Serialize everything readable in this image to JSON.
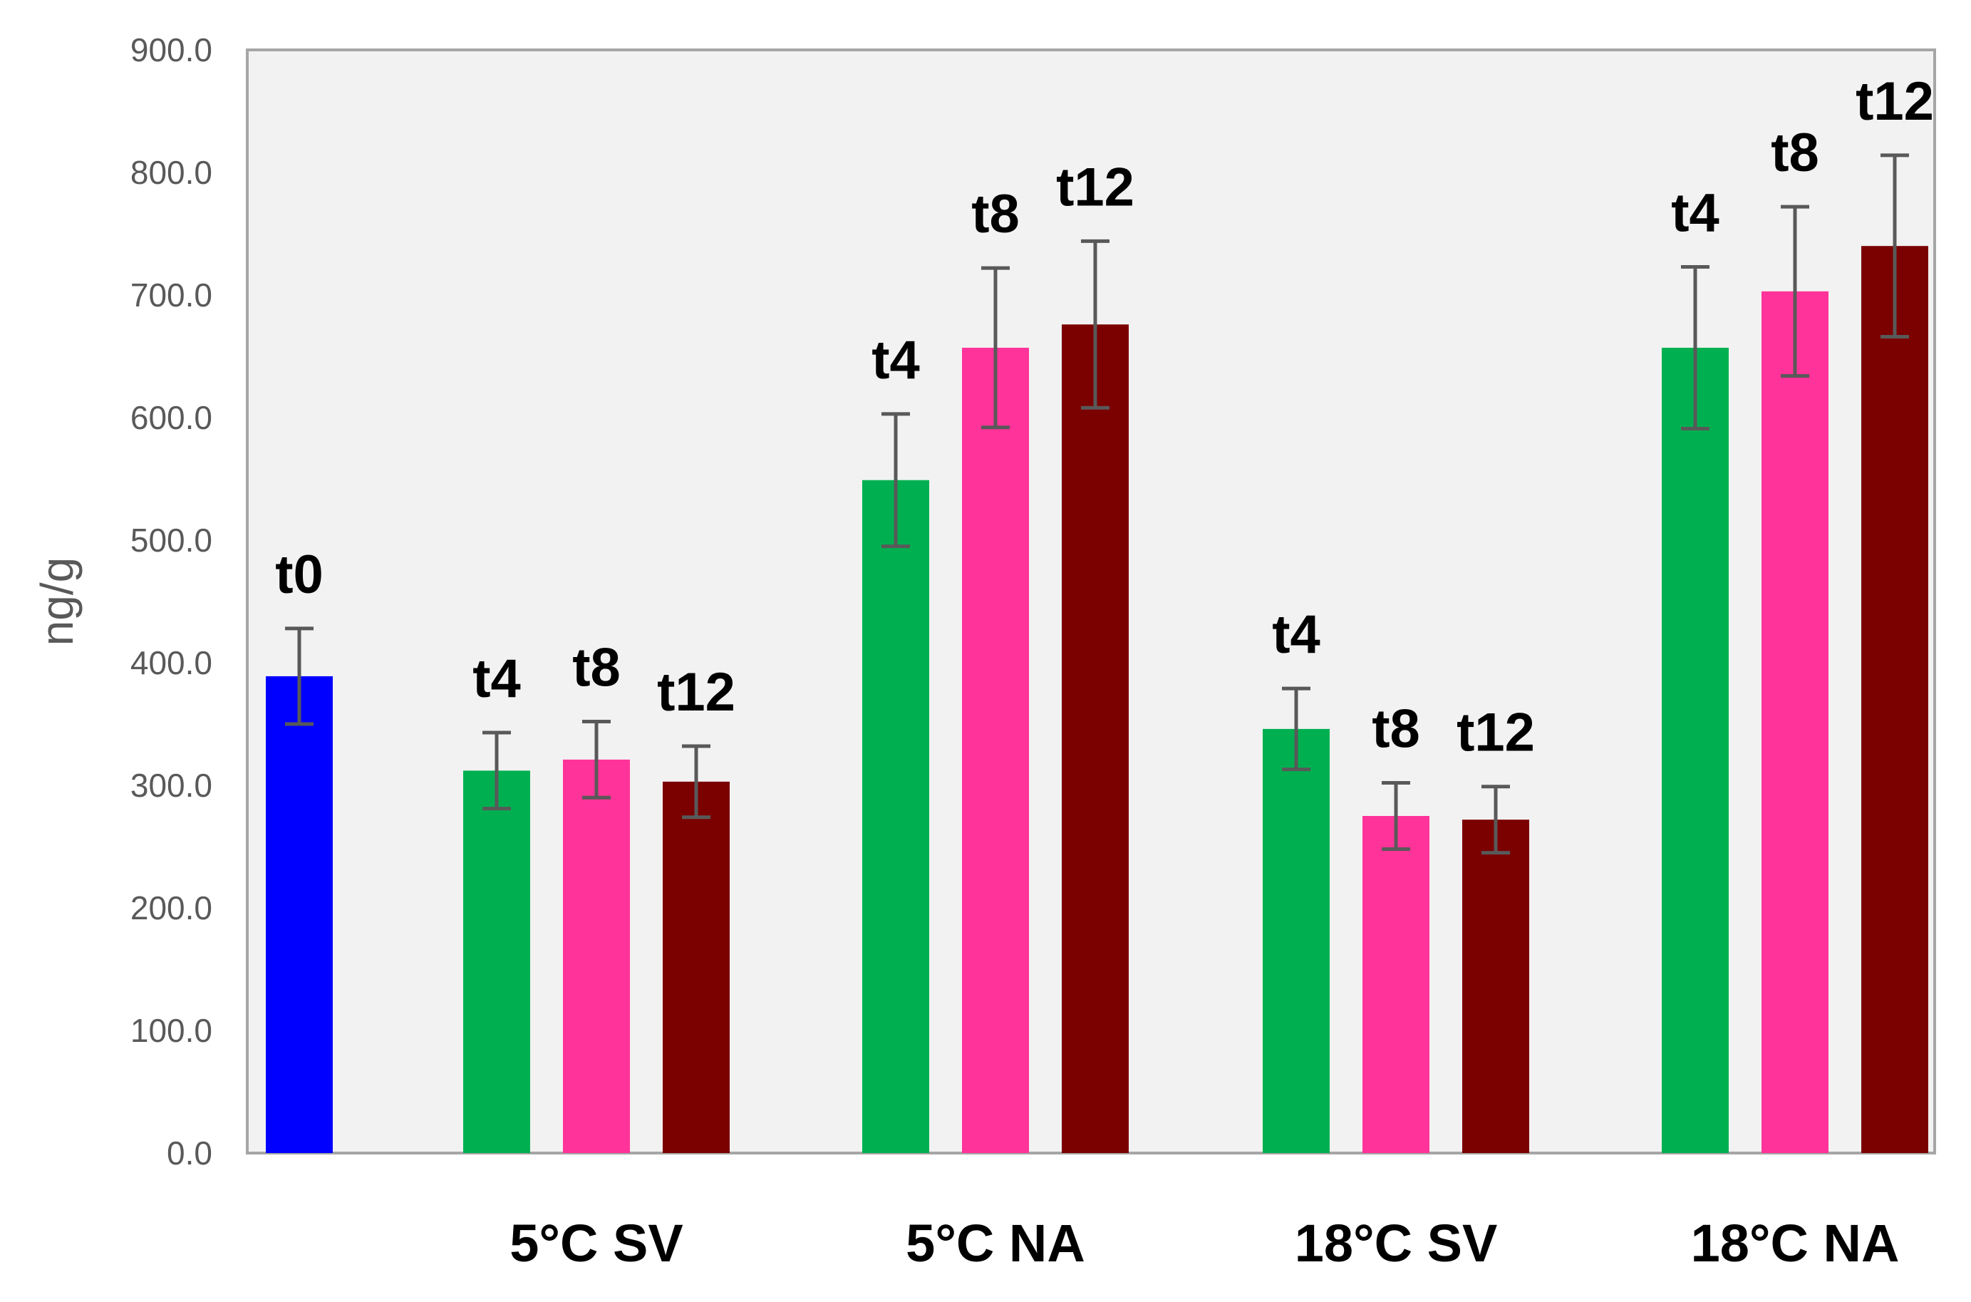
{
  "chart_data": {
    "type": "bar",
    "title": "",
    "xlabel": "",
    "ylabel": "ng/g",
    "ylim": [
      0,
      900
    ],
    "yticks": [
      "0.0",
      "100.0",
      "200.0",
      "300.0",
      "400.0",
      "500.0",
      "600.0",
      "700.0",
      "800.0",
      "900.0"
    ],
    "grid": false,
    "legend": "none",
    "groups": [
      {
        "name": "",
        "bars": [
          {
            "label": "t0",
            "value": 389,
            "error": 39,
            "color": "#0000FF"
          }
        ]
      },
      {
        "name": "5°C SV",
        "bars": [
          {
            "label": "t4",
            "value": 312,
            "error": 31,
            "color": "#00B050"
          },
          {
            "label": "t8",
            "value": 321,
            "error": 31,
            "color": "#FF3399"
          },
          {
            "label": "t12",
            "value": 303,
            "error": 29,
            "color": "#7B0000"
          }
        ]
      },
      {
        "name": "5°C NA",
        "bars": [
          {
            "label": "t4",
            "value": 549,
            "error": 54,
            "color": "#00B050"
          },
          {
            "label": "t8",
            "value": 657,
            "error": 65,
            "color": "#FF3399"
          },
          {
            "label": "t12",
            "value": 676,
            "error": 68,
            "color": "#7B0000"
          }
        ]
      },
      {
        "name": "18°C SV",
        "bars": [
          {
            "label": "t4",
            "value": 346,
            "error": 33,
            "color": "#00B050"
          },
          {
            "label": "t8",
            "value": 275,
            "error": 27,
            "color": "#FF3399"
          },
          {
            "label": "t12",
            "value": 272,
            "error": 27,
            "color": "#7B0000"
          }
        ]
      },
      {
        "name": "18°C NA",
        "bars": [
          {
            "label": "t4",
            "value": 657,
            "error": 66,
            "color": "#00B050"
          },
          {
            "label": "t8",
            "value": 703,
            "error": 69,
            "color": "#FF3399"
          },
          {
            "label": "t12",
            "value": 740,
            "error": 74,
            "color": "#7B0000"
          }
        ]
      }
    ]
  },
  "colors": {
    "plot_background": "#F2F2F2",
    "plot_border": "#A6A6A6",
    "axis_text": "#595959",
    "error_bar": "#595959"
  }
}
